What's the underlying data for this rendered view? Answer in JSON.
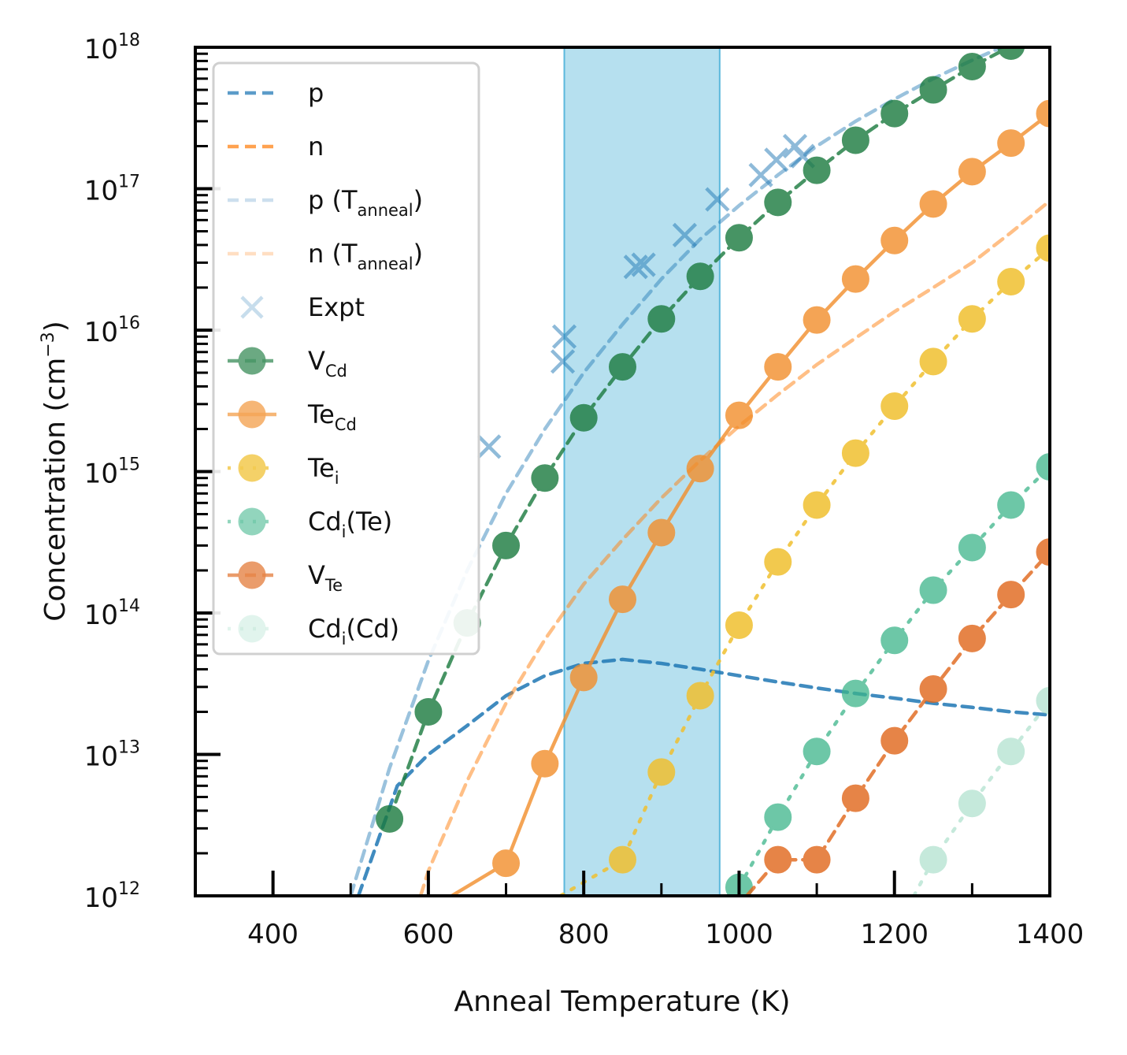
{
  "chart_data": {
    "type": "line",
    "xlabel": "Anneal Temperature (K)",
    "ylabel": "Concentration (cm",
    "ylabel_sup": "−3",
    "ylabel_close": ")",
    "xlim": [
      300,
      1400
    ],
    "ylim": [
      1000000000000.0,
      1e+18
    ],
    "yscale": "log",
    "x_ticks": [
      400,
      600,
      800,
      1000,
      1200,
      1400
    ],
    "x_tick_labels": [
      "400",
      "600",
      "800",
      "1000",
      "1200",
      "1400"
    ],
    "y_ticks": [
      12,
      13,
      14,
      15,
      16,
      17,
      18
    ],
    "y_tick_base": "10",
    "y_tick_exps": [
      "12",
      "13",
      "14",
      "15",
      "16",
      "17",
      "18"
    ],
    "shaded_region": {
      "x": [
        775,
        975
      ],
      "color": "#8fcfe6"
    },
    "legend_position": "upper-left",
    "series": [
      {
        "key": "p",
        "label": "p",
        "sub": "",
        "suffix": "",
        "color": "#1f77b4",
        "opacity": 0.85,
        "dash": "14,9",
        "marker": "none",
        "x": [
          510,
          560,
          600,
          650,
          700,
          750,
          800,
          850,
          900,
          950,
          1000,
          1050,
          1100,
          1150,
          1200,
          1250,
          1300,
          1350,
          1400
        ],
        "y": [
          1000000000000.0,
          6000000000000.0,
          10000000000000.0,
          16000000000000.0,
          26000000000000.0,
          36000000000000.0,
          44000000000000.0,
          47000000000000.0,
          44000000000000.0,
          40000000000000.0,
          36000000000000.0,
          32500000000000.0,
          29500000000000.0,
          27000000000000.0,
          25000000000000.0,
          23000000000000.0,
          21500000000000.0,
          20000000000000.0,
          19000000000000.0
        ]
      },
      {
        "key": "n",
        "label": "n",
        "sub": "",
        "suffix": "",
        "color": "#ff7f0e",
        "opacity": 0.85,
        "dash": "14,9",
        "marker": "none",
        "x": [],
        "y": []
      },
      {
        "key": "p_anneal",
        "label": "p (T",
        "sub": "anneal",
        "suffix": ")",
        "color": "#1f77b4",
        "opacity": 0.45,
        "dash": "14,9",
        "marker": "none",
        "x": [
          500,
          550,
          600,
          650,
          700,
          750,
          800,
          850,
          900,
          950,
          1000,
          1050,
          1100,
          1150,
          1200,
          1250,
          1300,
          1350,
          1400
        ],
        "y": [
          1000000000000.0,
          8000000000000.0,
          46000000000000.0,
          200000000000000.0,
          700000000000000.0,
          2000000000000000.0,
          5000000000000000.0,
          1.1e+16,
          2.3e+16,
          4.4e+16,
          7.6e+16,
          1.25e+17,
          2e+17,
          3e+17,
          4.3e+17,
          6e+17,
          8.1e+17,
          1.07e+18,
          1.38e+18
        ]
      },
      {
        "key": "n_anneal",
        "label": "n (T",
        "sub": "anneal",
        "suffix": ")",
        "color": "#ff7f0e",
        "opacity": 0.5,
        "dash": "14,9",
        "marker": "none",
        "x": [
          590,
          600,
          650,
          700,
          750,
          800,
          850,
          900,
          950,
          1000,
          1050,
          1100,
          1150,
          1200,
          1250,
          1300,
          1350,
          1400
        ],
        "y": [
          1000000000000.0,
          1500000000000.0,
          6500000000000.0,
          23000000000000.0,
          65000000000000.0,
          160000000000000.0,
          330000000000000.0,
          650000000000000.0,
          1200000000000000.0,
          2100000000000000.0,
          3500000000000000.0,
          5700000000000000.0,
          8800000000000000.0,
          1.35e+16,
          2e+16,
          3e+16,
          4.9e+16,
          8.2e+16
        ]
      },
      {
        "key": "expt",
        "label": "Expt",
        "sub": "",
        "suffix": "",
        "color": "#1f77b4",
        "opacity": 0.5,
        "dash": "",
        "marker": "x",
        "x": [
          678,
          773,
          775,
          867,
          877,
          930,
          972,
          1028,
          1048,
          1072,
          1082
        ],
        "y": [
          1500000000000000.0,
          6000000000000000.0,
          9000000000000000.0,
          2.8e+16,
          2.9e+16,
          4.7e+16,
          8.4e+16,
          1.25e+17,
          1.6e+17,
          2e+17,
          1.7e+17
        ]
      },
      {
        "key": "v_cd",
        "label": "V",
        "sub": "Cd",
        "suffix": "",
        "color": "#1a7a3e",
        "opacity": 0.8,
        "dash": "14,9",
        "marker": "circle",
        "x": [
          550,
          600,
          650,
          700,
          750,
          800,
          850,
          900,
          950,
          1000,
          1050,
          1100,
          1150,
          1200,
          1250,
          1300,
          1350,
          1400
        ],
        "y": [
          3500000000000.0,
          20000000000000.0,
          85000000000000.0,
          300000000000000.0,
          900000000000000.0,
          2400000000000000.0,
          5500000000000000.0,
          1.2e+16,
          2.4e+16,
          4.5e+16,
          8e+16,
          1.35e+17,
          2.2e+17,
          3.4e+17,
          5e+17,
          7.3e+17,
          1.02e+18,
          1.4e+18
        ]
      },
      {
        "key": "te_cd",
        "label": "Te",
        "sub": "Cd",
        "suffix": "",
        "color": "#f28e2b",
        "opacity": 0.8,
        "dash": "",
        "marker": "circle",
        "x": [
          630,
          700,
          750,
          800,
          850,
          900,
          950,
          1000,
          1050,
          1100,
          1150,
          1200,
          1250,
          1300,
          1350,
          1400
        ],
        "y": [
          1000000000000.0,
          1700000000000.0,
          8600000000000.0,
          35000000000000.0,
          125000000000000.0,
          370000000000000.0,
          1050000000000000.0,
          2500000000000000.0,
          5500000000000000.0,
          1.18e+16,
          2.3e+16,
          4.3e+16,
          7.8e+16,
          1.32e+17,
          2.1e+17,
          3.4e+17
        ]
      },
      {
        "key": "te_i",
        "label": "Te",
        "sub": "i",
        "suffix": "",
        "color": "#f0c030",
        "opacity": 0.85,
        "dash": "4,12",
        "marker": "circle",
        "x": [
          770,
          850,
          900,
          950,
          1000,
          1050,
          1100,
          1150,
          1200,
          1250,
          1300,
          1350,
          1400
        ],
        "y": [
          1000000000000.0,
          1800000000000.0,
          7500000000000.0,
          26000000000000.0,
          82000000000000.0,
          230000000000000.0,
          580000000000000.0,
          1350000000000000.0,
          2900000000000000.0,
          6000000000000000.0,
          1.2e+16,
          2.2e+16,
          3.8e+16
        ]
      },
      {
        "key": "cd_i_te",
        "label": "Cd",
        "sub": "i",
        "suffix": "(Te)",
        "color": "#3db58a",
        "opacity": 0.75,
        "dash": "4,12",
        "marker": "circle",
        "x": [
          1000,
          1050,
          1100,
          1150,
          1200,
          1250,
          1300,
          1350,
          1400
        ],
        "y": [
          1150000000000.0,
          3600000000000.0,
          10500000000000.0,
          27000000000000.0,
          64000000000000.0,
          145000000000000.0,
          290000000000000.0,
          580000000000000.0,
          1080000000000000.0
        ]
      },
      {
        "key": "v_te",
        "label": "V",
        "sub": "Te",
        "suffix": "",
        "color": "#e0661a",
        "opacity": 0.8,
        "dash": "14,9",
        "marker": "circle",
        "x": [
          1010,
          1050,
          1100,
          1150,
          1200,
          1250,
          1300,
          1350,
          1400
        ],
        "y": [
          1000000000000.0,
          1800000000000.0,
          1800000000000.0,
          4900000000000.0,
          12500000000000.0,
          29000000000000.0,
          66000000000000.0,
          135000000000000.0,
          270000000000000.0
        ]
      },
      {
        "key": "cd_i_cd",
        "label": "Cd",
        "sub": "i",
        "suffix": "(Cd)",
        "color": "#7fcfb0",
        "opacity": 0.45,
        "dash": "4,12",
        "marker": "circle",
        "x": [
          1225,
          1250,
          1300,
          1350,
          1400
        ],
        "y": [
          1000000000000.0,
          1800000000000.0,
          4500000000000.0,
          10500000000000.0,
          24000000000000.0
        ]
      }
    ]
  }
}
